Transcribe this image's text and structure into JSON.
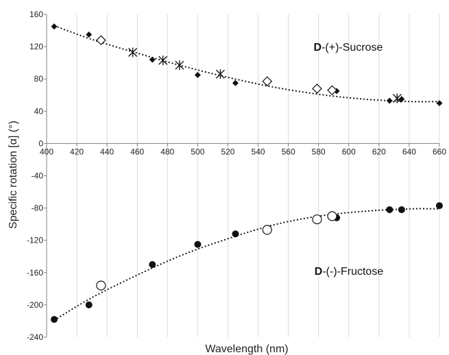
{
  "chart_data": {
    "type": "scatter",
    "xlabel": "Wavelength (nm)",
    "ylabel": "Specific rotation [α] (°)",
    "xlim": [
      400,
      660
    ],
    "ylim": [
      -240,
      160
    ],
    "x_ticks": [
      "400",
      "420",
      "440",
      "460",
      "480",
      "500",
      "520",
      "540",
      "560",
      "580",
      "600",
      "620",
      "640",
      "660"
    ],
    "y_ticks": [
      "160",
      "120",
      "80",
      "40",
      "0",
      "-40",
      "-80",
      "-120",
      "-160",
      "-200",
      "-240"
    ],
    "grid": "vertical",
    "colors": {
      "marker": "#111111",
      "trend": "#111111",
      "grid": "#d9d9d9",
      "axis": "#7f7f7f"
    },
    "annotations": [
      {
        "id": "sucrose",
        "bold": "D",
        "rest": "-(+)-Sucrose",
        "x": 560,
        "y": 120
      },
      {
        "id": "fructose",
        "bold": "D",
        "rest": "-(-)-Fructose",
        "x": 560,
        "y": -180
      }
    ],
    "series": [
      {
        "marker": "diamond-filled",
        "x": [
          405,
          428,
          470,
          500,
          525,
          592,
          627,
          635,
          660
        ],
        "y": [
          145,
          135,
          104,
          85,
          75,
          65,
          53,
          55,
          50
        ]
      },
      {
        "marker": "diamond-open",
        "x": [
          436,
          546,
          579,
          589
        ],
        "y": [
          128,
          77,
          68,
          66
        ]
      },
      {
        "marker": "star",
        "x": [
          457,
          477,
          488,
          515,
          632
        ],
        "y": [
          113,
          103,
          97,
          86,
          56
        ]
      },
      {
        "marker": "circle-filled",
        "x": [
          405,
          428,
          470,
          500,
          525,
          592,
          627,
          635,
          660
        ],
        "y": [
          -218,
          -200,
          -150,
          -125,
          -112,
          -92,
          -82,
          -82,
          -77
        ]
      },
      {
        "marker": "circle-open",
        "x": [
          436,
          546,
          579,
          589
        ],
        "y": [
          -176,
          -107,
          -94,
          -90
        ]
      }
    ],
    "trendlines": [
      {
        "style": "dotted",
        "x": [
          405,
          430,
          460,
          490,
          520,
          550,
          580,
          610,
          640,
          660
        ],
        "y": [
          146,
          129,
          112,
          96,
          82,
          70,
          61,
          55,
          52,
          52
        ]
      },
      {
        "style": "dotted",
        "x": [
          405,
          430,
          460,
          490,
          520,
          550,
          580,
          610,
          640,
          660
        ],
        "y": [
          -219,
          -191,
          -163,
          -138,
          -118,
          -101,
          -90,
          -84,
          -81,
          -81
        ]
      }
    ]
  }
}
